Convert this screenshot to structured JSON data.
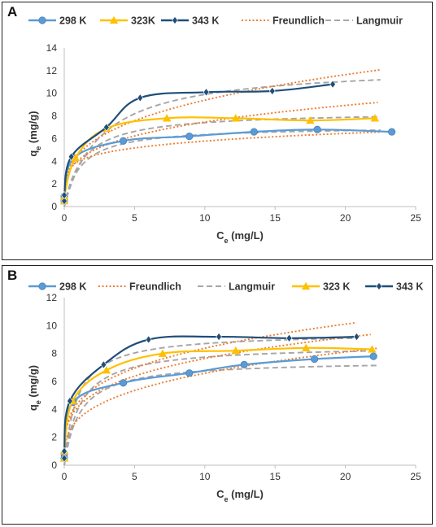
{
  "chart_data": [
    {
      "panel": "A",
      "type": "scatter",
      "xlabel": "C",
      "xlabel_sub": "e",
      "xlabel_unit": " (mg/L)",
      "ylabel": "q",
      "ylabel_sub": "e",
      "ylabel_unit": " (mg/g)",
      "xlim": [
        0,
        25
      ],
      "ylim": [
        0,
        14
      ],
      "xticks": [
        0,
        5,
        10,
        15,
        20,
        25
      ],
      "yticks": [
        0,
        2,
        4,
        6,
        8,
        10,
        12,
        14
      ],
      "grid": false,
      "legend_position": "top",
      "legend": [
        {
          "label": "298 K",
          "kind": "series",
          "ref": 0
        },
        {
          "label": "323K",
          "kind": "series",
          "ref": 1
        },
        {
          "label": "343 K",
          "kind": "series",
          "ref": 2
        },
        {
          "label": "Freundlich",
          "kind": "fit",
          "ref": "freundlich"
        },
        {
          "label": "Langmuir",
          "kind": "fit",
          "ref": "langmuir"
        }
      ],
      "series": [
        {
          "name": "298 K",
          "color": "#5b9bd5",
          "marker": "circle",
          "x": [
            0.0,
            0.0,
            0.7,
            4.2,
            8.9,
            13.5,
            18.0,
            23.3
          ],
          "y": [
            0.5,
            0.9,
            4.3,
            5.8,
            6.2,
            6.6,
            6.8,
            6.6
          ]
        },
        {
          "name": "323K",
          "color": "#ffc000",
          "marker": "triangle",
          "x": [
            0.0,
            0.0,
            0.8,
            3.0,
            7.3,
            12.2,
            17.5,
            22.1
          ],
          "y": [
            0.5,
            0.9,
            4.3,
            6.9,
            7.8,
            7.8,
            7.6,
            7.8
          ]
        },
        {
          "name": "343 K",
          "color": "#1f4e79",
          "marker": "diamond",
          "x": [
            0.0,
            0.0,
            0.5,
            3.0,
            5.4,
            10.1,
            14.8,
            19.1
          ],
          "y": [
            0.5,
            1.0,
            4.4,
            7.0,
            9.6,
            10.1,
            10.2,
            10.8
          ]
        }
      ],
      "fits": {
        "freundlich": {
          "color": "#ed7d31",
          "curves": [
            {
              "K": 4.0,
              "n": 0.16,
              "xmax": 22.5
            },
            {
              "K": 4.1,
              "n": 0.26,
              "xmax": 22.3
            },
            {
              "K": 4.6,
              "n": 0.31,
              "xmax": 22.5
            }
          ]
        },
        "langmuir": {
          "color": "#a6a6a6",
          "curves": [
            {
              "qm": 7.1,
              "KL": 0.85,
              "xmax": 22.5
            },
            {
              "qm": 8.4,
              "KL": 0.75,
              "xmax": 22.3
            },
            {
              "qm": 12.5,
              "KL": 0.38,
              "xmax": 22.5
            }
          ]
        }
      }
    },
    {
      "panel": "B",
      "type": "scatter",
      "xlabel": "C",
      "xlabel_sub": "e",
      "xlabel_unit": " (mg/L)",
      "ylabel": "q",
      "ylabel_sub": "e",
      "ylabel_unit": " (mg/g)",
      "xlim": [
        0,
        25
      ],
      "ylim": [
        0,
        12
      ],
      "xticks": [
        0,
        5,
        10,
        15,
        20,
        25
      ],
      "yticks": [
        0,
        2,
        4,
        6,
        8,
        10,
        12
      ],
      "grid": false,
      "legend_position": "top",
      "legend": [
        {
          "label": "298 K",
          "kind": "series",
          "ref": 0
        },
        {
          "label": "Freundlich",
          "kind": "fit",
          "ref": "freundlich"
        },
        {
          "label": "Langmuir",
          "kind": "fit",
          "ref": "langmuir"
        },
        {
          "label": "323 K",
          "kind": "series",
          "ref": 1
        },
        {
          "label": "343 K",
          "kind": "series",
          "ref": 2
        }
      ],
      "series": [
        {
          "name": "298 K",
          "color": "#5b9bd5",
          "marker": "circle",
          "x": [
            0.0,
            0.0,
            0.6,
            4.2,
            8.9,
            12.8,
            17.8,
            22.0
          ],
          "y": [
            0.5,
            0.8,
            4.5,
            5.9,
            6.6,
            7.2,
            7.6,
            7.8
          ]
        },
        {
          "name": "323 K",
          "color": "#ffc000",
          "marker": "triangle",
          "x": [
            0.0,
            0.0,
            0.6,
            3.0,
            7.0,
            12.2,
            17.2,
            21.9
          ],
          "y": [
            0.5,
            1.0,
            4.6,
            6.8,
            8.0,
            8.2,
            8.4,
            8.3
          ]
        },
        {
          "name": "343 K",
          "color": "#1f4e79",
          "marker": "diamond",
          "x": [
            0.0,
            0.0,
            0.4,
            2.8,
            6.0,
            11.0,
            16.0,
            20.8
          ],
          "y": [
            0.5,
            1.0,
            4.6,
            7.2,
            9.0,
            9.2,
            9.1,
            9.2
          ]
        }
      ],
      "fits": {
        "freundlich": {
          "color": "#ed7d31",
          "curves": [
            {
              "K": 3.3,
              "n": 0.3,
              "xmax": 22.3
            },
            {
              "K": 4.2,
              "n": 0.26,
              "xmax": 21.8
            },
            {
              "K": 4.5,
              "n": 0.27,
              "xmax": 20.8
            }
          ]
        },
        "langmuir": {
          "color": "#a6a6a6",
          "curves": [
            {
              "qm": 7.5,
              "KL": 0.9,
              "xmax": 22.3
            },
            {
              "qm": 8.6,
              "KL": 0.9,
              "xmax": 21.8
            },
            {
              "qm": 9.5,
              "KL": 1.1,
              "xmax": 20.8
            }
          ]
        }
      }
    }
  ]
}
